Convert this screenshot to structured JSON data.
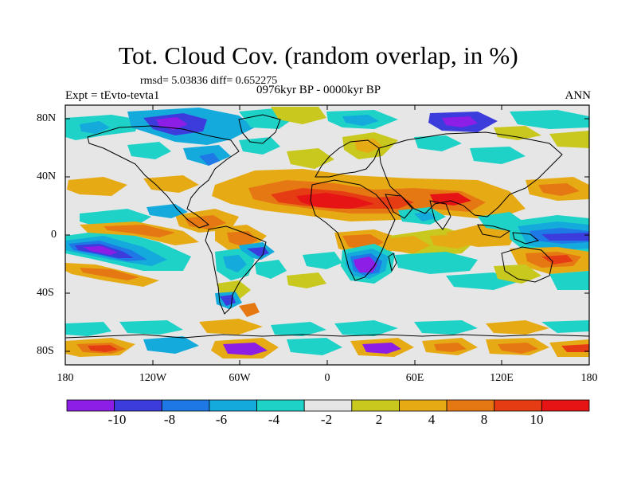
{
  "title": "Tot. Cloud Cov. (random overlap, in %)",
  "stats": "rmsd= 5.03836 diff= 0.652275",
  "experiment": "Expt = tEvto-tevta1",
  "period": "0976kyr BP - 0000kyr BP",
  "season": "ANN",
  "lat_ticks": [
    "80N",
    "40N",
    "0",
    "40S",
    "80S"
  ],
  "lon_ticks": [
    "180",
    "120W",
    "60W",
    "0",
    "60E",
    "120E",
    "180"
  ],
  "colorbar": {
    "labels": [
      "-10",
      "-8",
      "-6",
      "-4",
      "-2",
      "2",
      "4",
      "8",
      "10"
    ],
    "colors": [
      "#8c1ee6",
      "#3c3cdc",
      "#1e78e6",
      "#14aadc",
      "#1ed2c8",
      "#e6e6e6",
      "#c8c81e",
      "#e6aa14",
      "#e67814",
      "#e63c14",
      "#e61414"
    ]
  },
  "palette": {
    "purple": "#8c1ee6",
    "blue_dark": "#3c3cdc",
    "blue": "#1e78e6",
    "cyan": "#14aadc",
    "teal": "#1ed2c8",
    "neutral": "#e6e6e6",
    "olive": "#c8c81e",
    "orange": "#e6aa14",
    "orange_dark": "#e67814",
    "red_orange": "#e63c14",
    "red": "#e61414"
  }
}
